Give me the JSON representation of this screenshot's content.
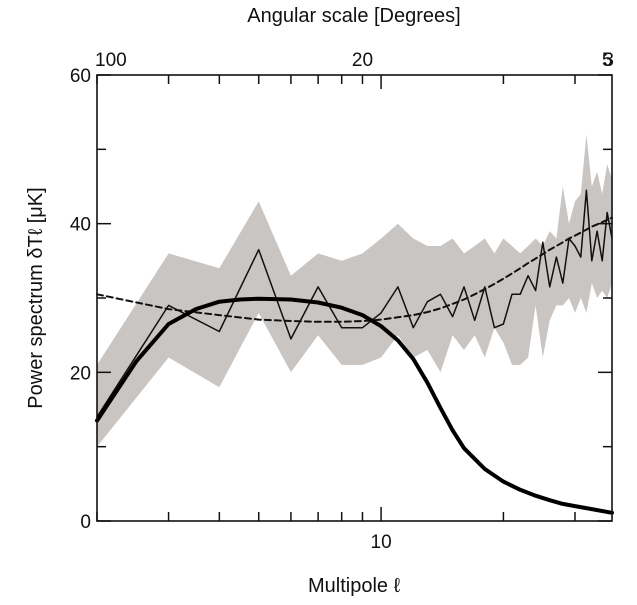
{
  "chart_data": {
    "type": "line",
    "title": "",
    "xlabel": "Multipole ℓ",
    "x2label": "Angular scale [Degrees]",
    "ylabel": "Power spectrum δTℓ [μK]",
    "x_scale": "log",
    "xlim": [
      2,
      37
    ],
    "ylim": [
      0,
      60
    ],
    "grid": false,
    "legend": "none",
    "x_ticks": [
      {
        "value": 10,
        "label": "10"
      }
    ],
    "y_ticks": [
      {
        "value": 0,
        "label": "0"
      },
      {
        "value": 20,
        "label": "20"
      },
      {
        "value": 40,
        "label": "40"
      },
      {
        "value": 60,
        "label": "60"
      }
    ],
    "top_ticks": [
      {
        "value": 100,
        "label": "100"
      },
      {
        "value": 20,
        "label": "20"
      },
      {
        "value": 5,
        "label": "5"
      },
      {
        "value": 3,
        "label": "3"
      }
    ],
    "series": [
      {
        "style": "shaded-band",
        "color": "#c9c5c3",
        "x": [
          2,
          3,
          4,
          5,
          6,
          7,
          8,
          9,
          10,
          11,
          12,
          13,
          14,
          15,
          16,
          17,
          18,
          19,
          20,
          21,
          22,
          23,
          24,
          25,
          26,
          27,
          28,
          29,
          30,
          31,
          32,
          33,
          34,
          35,
          36,
          37
        ],
        "upper": [
          21,
          36,
          34,
          43,
          33,
          36,
          35,
          36,
          38,
          40,
          38,
          37,
          37,
          38,
          36,
          37,
          38,
          36,
          38,
          37,
          36,
          37,
          38,
          37,
          39,
          38,
          45,
          40,
          43,
          44,
          52,
          45,
          47,
          44,
          48,
          46
        ],
        "lower": [
          10,
          22,
          18,
          28,
          20,
          25,
          21,
          21,
          22,
          25,
          22,
          23,
          20,
          25,
          23,
          25,
          22,
          26,
          24,
          21,
          21,
          22,
          29,
          22,
          27,
          29,
          29,
          30,
          28,
          30,
          28,
          32,
          30,
          31,
          30,
          32
        ]
      },
      {
        "style": "thin-solid",
        "color": "#111111",
        "x": [
          2,
          3,
          4,
          5,
          6,
          7,
          8,
          9,
          10,
          11,
          12,
          13,
          14,
          15,
          16,
          17,
          18,
          19,
          20,
          21,
          22,
          23,
          24,
          25,
          26,
          27,
          28,
          29,
          30,
          31,
          32,
          33,
          34,
          35,
          36,
          37
        ],
        "y": [
          14,
          29,
          25.5,
          36.5,
          24.5,
          31.5,
          26,
          26,
          28,
          31.5,
          26,
          29.5,
          30.5,
          27.5,
          31.5,
          27,
          31.5,
          26,
          26.5,
          30.5,
          30.5,
          33,
          31,
          37.5,
          31.5,
          35.5,
          32,
          38,
          37,
          35.5,
          44.5,
          35,
          39,
          35,
          41.5,
          38
        ]
      },
      {
        "style": "dashed",
        "color": "#111111",
        "x": [
          2,
          3,
          4,
          5,
          6,
          7,
          8,
          9,
          10,
          11,
          12,
          13,
          14,
          15,
          16,
          17,
          18,
          19,
          20,
          21,
          22,
          23,
          24,
          25,
          26,
          27,
          28,
          29,
          30,
          31,
          32,
          33,
          34,
          35,
          36,
          37
        ],
        "y": [
          30.5,
          28.5,
          27.7,
          27.1,
          26.9,
          26.8,
          26.8,
          26.9,
          27.1,
          27.4,
          27.7,
          28.1,
          28.6,
          29.2,
          29.8,
          30.5,
          31.2,
          31.9,
          32.6,
          33.3,
          34,
          34.7,
          35.3,
          35.9,
          36.5,
          37,
          37.5,
          38,
          38.4,
          38.8,
          39.2,
          39.6,
          39.9,
          40.2,
          40.5,
          40.8
        ]
      },
      {
        "style": "thick-solid",
        "color": "#000000",
        "x": [
          2,
          2.5,
          3,
          3.5,
          4,
          4.5,
          5,
          6,
          7,
          8,
          9,
          10,
          11,
          12,
          13,
          14,
          15,
          16,
          18,
          20,
          22,
          24,
          26,
          28,
          30,
          33,
          37
        ],
        "y": [
          13.5,
          21.5,
          26.5,
          28.5,
          29.5,
          29.8,
          29.9,
          29.8,
          29.4,
          28.7,
          27.7,
          26.2,
          24.3,
          21.8,
          18.6,
          15.2,
          12.2,
          9.8,
          7,
          5.3,
          4.2,
          3.4,
          2.8,
          2.3,
          2,
          1.6,
          1.1
        ]
      }
    ]
  }
}
